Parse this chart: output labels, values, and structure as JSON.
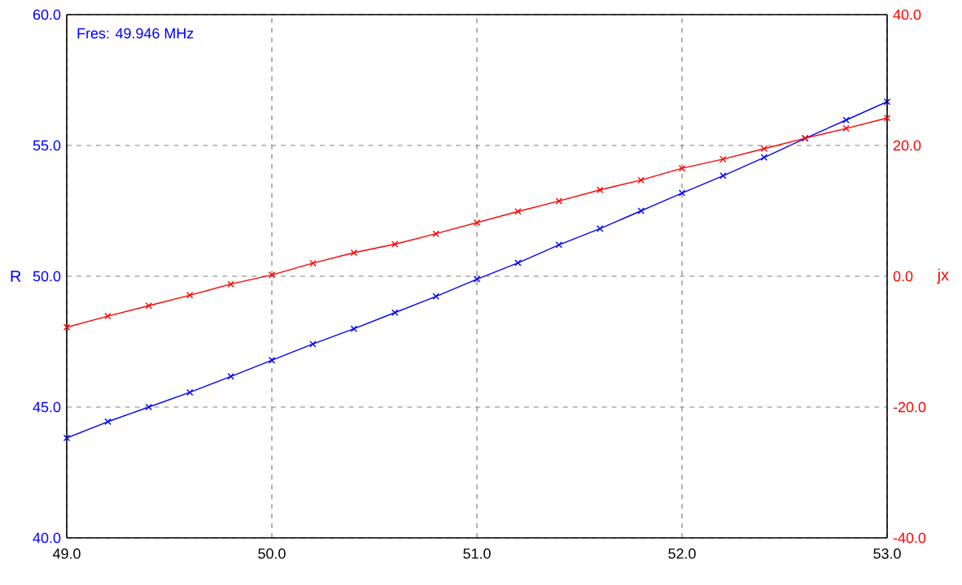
{
  "chart_data": {
    "type": "line",
    "x": [
      49.0,
      49.2,
      49.4,
      49.6,
      49.8,
      50.0,
      50.2,
      50.4,
      50.6,
      50.8,
      51.0,
      51.2,
      51.4,
      51.6,
      51.8,
      52.0,
      52.2,
      52.4,
      52.6,
      52.8,
      53.0
    ],
    "series": [
      {
        "color": "#0000ff",
        "values": [
          43.82,
          44.44,
          45.0,
          45.56,
          46.17,
          46.79,
          47.41,
          47.99,
          48.61,
          49.23,
          49.89,
          50.51,
          51.2,
          51.82,
          52.5,
          53.18,
          53.84,
          54.54,
          55.27,
          55.97,
          56.67
        ]
      },
      {
        "color": "#ff0000",
        "axis": "y2",
        "values": [
          -7.8,
          -6.1,
          -4.5,
          -2.9,
          -1.2,
          0.2,
          2.0,
          3.6,
          4.9,
          6.5,
          8.2,
          9.9,
          11.5,
          13.2,
          14.7,
          16.5,
          17.9,
          19.5,
          21.1,
          22.6,
          24.2
        ]
      }
    ],
    "ylabel": "R",
    "y2label": "jx",
    "annotations": [
      "Fres: 49.946 MHz"
    ],
    "xlim": [
      49,
      53
    ],
    "ylim": [
      40,
      60
    ],
    "y2lim": [
      -40,
      40
    ],
    "xticks": [
      {
        "value": 49,
        "label": "49.0"
      },
      {
        "value": 50,
        "label": "50.0"
      },
      {
        "value": 51,
        "label": "51.0"
      },
      {
        "value": 52,
        "label": "52.0"
      },
      {
        "value": 53,
        "label": "53.0"
      }
    ],
    "yticks": [
      {
        "value": 40,
        "label": "40.0"
      },
      {
        "value": 45,
        "label": "45.0"
      },
      {
        "value": 50,
        "label": "50.0"
      },
      {
        "value": 55,
        "label": "55.0"
      },
      {
        "value": 60,
        "label": "60.0"
      }
    ],
    "y2ticks": [
      {
        "value": -40,
        "label": "-40.0"
      },
      {
        "value": -20,
        "label": "-20.0"
      },
      {
        "value": 0,
        "label": "0.0"
      },
      {
        "value": 20,
        "label": "20.0"
      },
      {
        "value": 40,
        "label": "40.0"
      }
    ],
    "grid": true,
    "marker": "cross",
    "line_style": "solid"
  }
}
